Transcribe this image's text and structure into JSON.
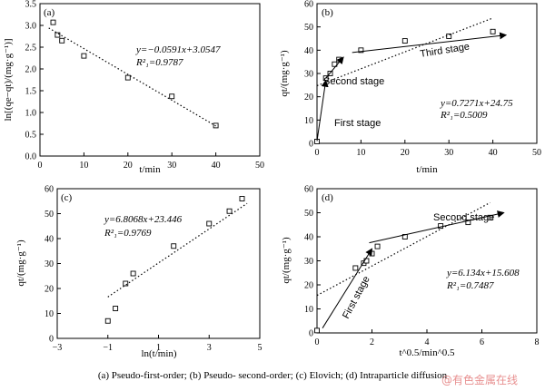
{
  "caption": "(a)  Pseudo-first-order;  (b)  Pseudo- second-order; (c) Elovich; (d) Intraparticle diffusion",
  "watermark": "@有色金属在线",
  "chart_data": [
    {
      "panel": "(a)",
      "type": "scatter",
      "xlabel": "t/min",
      "ylabel": "ln[(qe−qt)/(mg·g⁻¹)]",
      "xlim": [
        0,
        50
      ],
      "ylim": [
        0.0,
        3.5
      ],
      "xticks": [
        0,
        10,
        20,
        30,
        40,
        50
      ],
      "yticks": [
        0.0,
        0.5,
        1.0,
        1.5,
        2.0,
        2.5,
        3.0,
        3.5
      ],
      "series": [
        {
          "kind": "points",
          "x": [
            3,
            4,
            5,
            10,
            20,
            30,
            40
          ],
          "y": [
            3.07,
            2.78,
            2.65,
            2.3,
            1.8,
            1.37,
            0.7
          ]
        },
        {
          "kind": "fit",
          "style": "dotted",
          "x": [
            2,
            40
          ],
          "y": [
            2.94,
            0.69
          ]
        }
      ],
      "equation": "y=−0.0591x+3.0547",
      "r2": "R²₁=0.9787"
    },
    {
      "panel": "(b)",
      "type": "scatter",
      "xlabel": "t/min",
      "ylabel": "qt/(mg·g⁻¹)",
      "xlim": [
        0,
        50
      ],
      "ylim": [
        0,
        60
      ],
      "xticks": [
        0,
        10,
        20,
        30,
        40,
        50
      ],
      "yticks": [
        0,
        10,
        20,
        30,
        40,
        50,
        60
      ],
      "series": [
        {
          "kind": "points",
          "x": [
            0,
            2,
            3,
            4,
            5,
            10,
            20,
            30,
            40
          ],
          "y": [
            0.8,
            28,
            30,
            34,
            36,
            40,
            44,
            46,
            48
          ]
        },
        {
          "kind": "fit",
          "style": "dotted",
          "x": [
            0,
            40
          ],
          "y": [
            24.75,
            53.8
          ]
        },
        {
          "kind": "arrow",
          "x": [
            0,
            2
          ],
          "y": [
            1,
            27
          ]
        },
        {
          "kind": "arrow",
          "x": [
            2,
            6
          ],
          "y": [
            28,
            37
          ]
        },
        {
          "kind": "arrow",
          "x": [
            8,
            43
          ],
          "y": [
            39,
            46.5
          ]
        }
      ],
      "annotations": [
        "First stage",
        "Second stage",
        "Third stage"
      ],
      "equation": "y=0.7271x+24.75",
      "r2": "R²₁=0.5009"
    },
    {
      "panel": "(c)",
      "type": "scatter",
      "xlabel": "ln(t/min)",
      "ylabel": "qt/(mg·g⁻¹)",
      "xlim": [
        -3,
        5
      ],
      "ylim": [
        0,
        60
      ],
      "xticks": [
        -3,
        -1,
        1,
        3,
        5
      ],
      "yticks": [
        0,
        10,
        20,
        30,
        40,
        50,
        60
      ],
      "series": [
        {
          "kind": "points",
          "x": [
            -1.0,
            -0.7,
            -0.3,
            0.0,
            1.6,
            3.0,
            3.8,
            4.3
          ],
          "y": [
            7,
            12,
            22,
            26,
            37,
            46,
            51,
            56
          ]
        },
        {
          "kind": "fit",
          "style": "dotted",
          "x": [
            -1.0,
            4.5
          ],
          "y": [
            16.6,
            54.1
          ]
        }
      ],
      "equation": "y=6.8068x+23.446",
      "r2": "R²₁=0.9769"
    },
    {
      "panel": "(d)",
      "type": "scatter",
      "xlabel": "t^0.5/min^0.5",
      "ylabel": "qt/(mg·g⁻¹)",
      "xlim": [
        0,
        8
      ],
      "ylim": [
        0,
        60
      ],
      "xticks": [
        0,
        2,
        4,
        6,
        8
      ],
      "yticks": [
        0,
        10,
        20,
        30,
        40,
        50,
        60
      ],
      "series": [
        {
          "kind": "points",
          "x": [
            0.0,
            1.4,
            1.7,
            1.8,
            2.0,
            2.2,
            3.2,
            4.5,
            5.5,
            6.3
          ],
          "y": [
            1,
            27,
            29,
            30,
            33,
            36,
            40,
            44.5,
            46,
            48
          ]
        },
        {
          "kind": "fit",
          "style": "dotted",
          "x": [
            0,
            6.3
          ],
          "y": [
            15.6,
            54.2
          ]
        },
        {
          "kind": "arrow",
          "x": [
            0.2,
            2.0
          ],
          "y": [
            2,
            35
          ]
        },
        {
          "kind": "arrow",
          "x": [
            1.9,
            6.8
          ],
          "y": [
            37.5,
            50
          ]
        }
      ],
      "annotations": [
        "First stage",
        "Second stage"
      ],
      "equation": "y=6.134x+15.608",
      "r2": "R²₁=0.7487"
    }
  ]
}
